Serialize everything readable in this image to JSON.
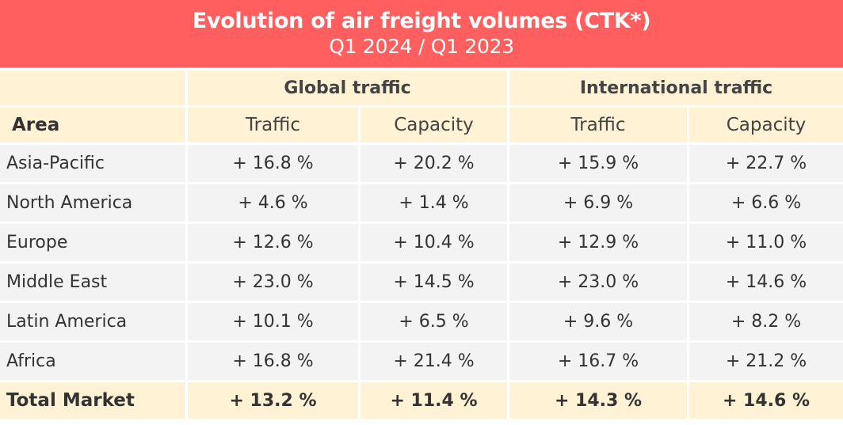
{
  "header": {
    "title": "Evolution of air freight volumes (CTK*)",
    "subtitle": "Q1 2024 / Q1 2023",
    "background_color": "#ff5f5f"
  },
  "table": {
    "group_headers": [
      "Global traffic",
      "International traffic"
    ],
    "columns": [
      "Area",
      "Traffic",
      "Capacity",
      "Traffic",
      "Capacity"
    ],
    "rows": [
      {
        "area": "Asia-Pacific",
        "global_traffic": "+ 16.8 %",
        "global_capacity": "+ 20.2 %",
        "intl_traffic": "+ 15.9 %",
        "intl_capacity": "+ 22.7 %"
      },
      {
        "area": "North America",
        "global_traffic": "+ 4.6 %",
        "global_capacity": "+ 1.4 %",
        "intl_traffic": "+ 6.9 %",
        "intl_capacity": "+ 6.6 %"
      },
      {
        "area": "Europe",
        "global_traffic": "+ 12.6 %",
        "global_capacity": "+ 10.4 %",
        "intl_traffic": "+ 12.9 %",
        "intl_capacity": "+ 11.0 %"
      },
      {
        "area": "Middle East",
        "global_traffic": "+ 23.0 %",
        "global_capacity": "+ 14.5 %",
        "intl_traffic": "+ 23.0 %",
        "intl_capacity": "+ 14.6 %"
      },
      {
        "area": "Latin America",
        "global_traffic": "+ 10.1 %",
        "global_capacity": "+ 6.5 %",
        "intl_traffic": "+ 9.6 %",
        "intl_capacity": "+ 8.2 %"
      },
      {
        "area": "Africa",
        "global_traffic": "+ 16.8 %",
        "global_capacity": "+ 21.4 %",
        "intl_traffic": "+ 16.7 %",
        "intl_capacity": "+ 21.2 %"
      }
    ],
    "total": {
      "area": "Total Market",
      "global_traffic": "+ 13.2 %",
      "global_capacity": "+ 11.4 %",
      "intl_traffic": "+ 14.3 %",
      "intl_capacity": "+ 14.6 %"
    },
    "header_bg_color": "#fff2d5",
    "row_bg_color": "#f3f3f3"
  }
}
